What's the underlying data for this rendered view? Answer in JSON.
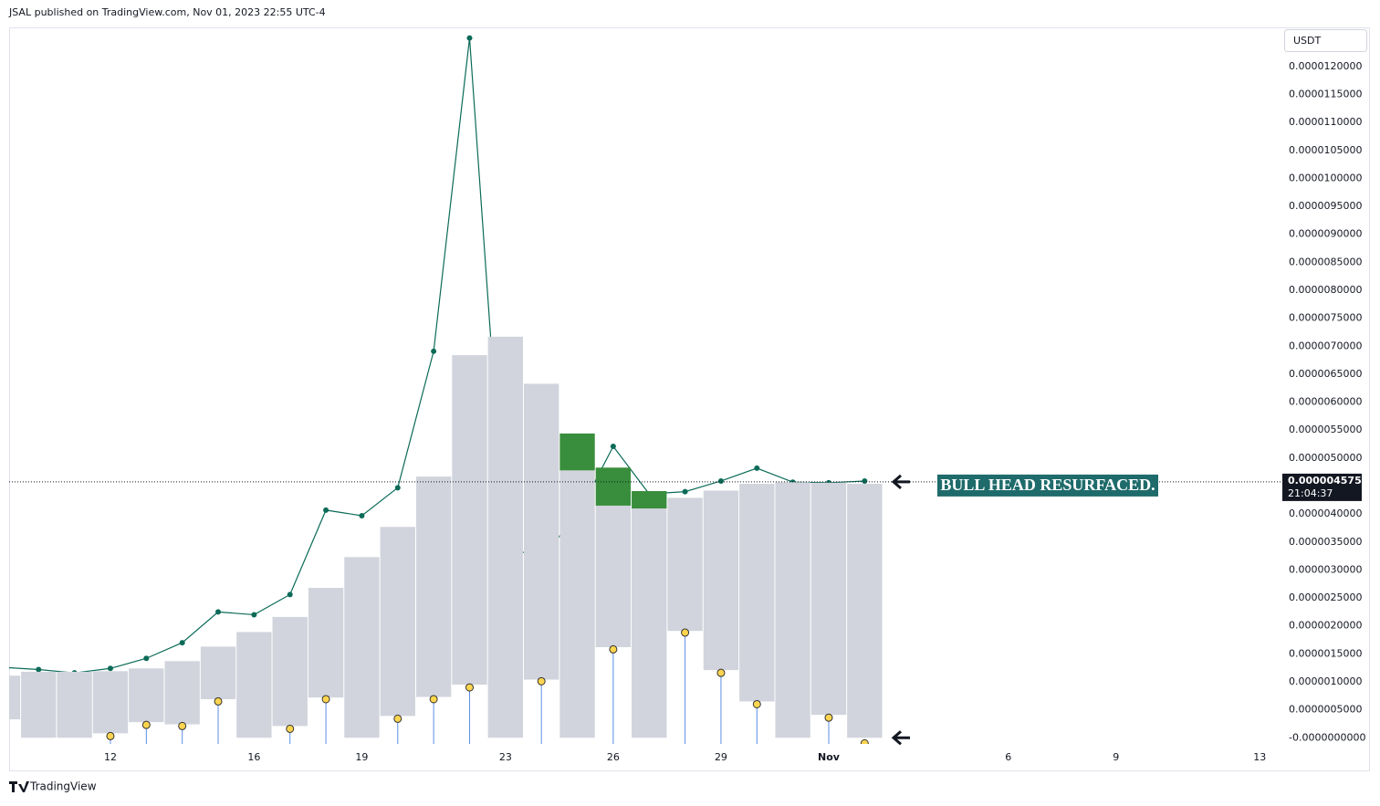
{
  "header": {
    "text": "JSAL published on TradingView.com, Nov 01, 2023 22:55 UTC-4"
  },
  "footer": {
    "brand": "TradingView"
  },
  "chart_data": {
    "type": "indicator",
    "currency": "USDT",
    "x": [
      0,
      1,
      2,
      3,
      4,
      5,
      6,
      7,
      8,
      9,
      10,
      11,
      12,
      13,
      14,
      15,
      16,
      17,
      18,
      19,
      20,
      21,
      22,
      23,
      24
    ],
    "xlim": [
      0.18,
      35.63
    ],
    "xticks": [
      {
        "value": 3,
        "label": "12"
      },
      {
        "value": 7,
        "label": "16"
      },
      {
        "value": 10,
        "label": "19"
      },
      {
        "value": 14,
        "label": "23"
      },
      {
        "value": 17,
        "label": "26"
      },
      {
        "value": 20,
        "label": "29"
      },
      {
        "value": 23,
        "label": "Nov"
      },
      {
        "value": 28,
        "label": "6"
      },
      {
        "value": 31,
        "label": "9"
      },
      {
        "value": 35,
        "label": "13"
      }
    ],
    "ylim": [
      -1.1e-07,
      1.27e-05
    ],
    "yticks": [
      {
        "value": 0,
        "label": "-0.0000000000"
      },
      {
        "value": 5e-07,
        "label": "0.0000005000"
      },
      {
        "value": 1e-06,
        "label": "0.0000010000"
      },
      {
        "value": 1.5e-06,
        "label": "0.0000015000"
      },
      {
        "value": 2e-06,
        "label": "0.0000020000"
      },
      {
        "value": 2.5e-06,
        "label": "0.0000025000"
      },
      {
        "value": 3e-06,
        "label": "0.0000030000"
      },
      {
        "value": 3.5e-06,
        "label": "0.0000035000"
      },
      {
        "value": 4e-06,
        "label": "0.0000040000"
      },
      {
        "value": 5e-06,
        "label": "0.0000050000"
      },
      {
        "value": 5.5e-06,
        "label": "0.0000055000"
      },
      {
        "value": 6e-06,
        "label": "0.0000060000"
      },
      {
        "value": 6.5e-06,
        "label": "0.0000065000"
      },
      {
        "value": 7e-06,
        "label": "0.0000070000"
      },
      {
        "value": 7.5e-06,
        "label": "0.0000075000"
      },
      {
        "value": 8e-06,
        "label": "0.0000080000"
      },
      {
        "value": 8.5e-06,
        "label": "0.0000085000"
      },
      {
        "value": 9e-06,
        "label": "0.0000090000"
      },
      {
        "value": 9.5e-06,
        "label": "0.0000095000"
      },
      {
        "value": 1e-05,
        "label": "0.0000100000"
      },
      {
        "value": 1.05e-05,
        "label": "0.0000105000"
      },
      {
        "value": 1.1e-05,
        "label": "0.0000110000"
      },
      {
        "value": 1.15e-05,
        "label": "0.0000115000"
      },
      {
        "value": 1.2e-05,
        "label": "0.0000120000"
      }
    ],
    "boxes": {
      "color": "#d1d4dc",
      "tops": [
        1.11e-06,
        1.18e-06,
        1.18e-06,
        1.19e-06,
        1.24e-06,
        1.37e-06,
        1.63e-06,
        1.89e-06,
        2.16e-06,
        2.68e-06,
        3.23e-06,
        3.77e-06,
        4.67e-06,
        6.84e-06,
        7.17e-06,
        6.33e-06,
        4.78e-06,
        4.15e-06,
        4.1e-06,
        4.29e-06,
        4.42e-06,
        4.54e-06,
        4.57e-06,
        4.56e-06,
        4.54e-06
      ],
      "bottoms": [
        3.3e-07,
        0,
        0,
        8e-08,
        2.8e-07,
        2.4e-07,
        6.9e-07,
        0,
        2.1e-07,
        7.2e-07,
        0,
        3.9e-07,
        7.3e-07,
        9.5e-07,
        0,
        1.04e-06,
        0,
        1.62e-06,
        0,
        1.91e-06,
        1.21e-06,
        6.5e-07,
        0,
        4.1e-07,
        0
      ]
    },
    "green_boxes": {
      "color": "#388e3c",
      "tops": [
        null,
        null,
        null,
        null,
        null,
        null,
        null,
        null,
        null,
        null,
        null,
        null,
        null,
        null,
        null,
        null,
        5.44e-06,
        4.83e-06,
        4.41e-06,
        null,
        null,
        null,
        null,
        null,
        null
      ],
      "bottoms": [
        null,
        null,
        null,
        null,
        null,
        null,
        null,
        null,
        null,
        null,
        null,
        null,
        null,
        null,
        null,
        null,
        4.78e-06,
        4.15e-06,
        4.1e-06,
        null,
        null,
        null,
        null,
        null,
        null
      ]
    },
    "line": {
      "color": "#0b6b58",
      "values": [
        1.26e-06,
        1.22e-06,
        1.16e-06,
        1.24e-06,
        1.42e-06,
        1.7e-06,
        2.25e-06,
        2.2e-06,
        2.56e-06,
        4.07e-06,
        3.97e-06,
        4.47e-06,
        6.91e-06,
        1.251e-05,
        3.4e-06,
        3.23e-06,
        3.97e-06,
        5.21e-06,
        4.36e-06,
        4.4e-06,
        4.59e-06,
        4.82e-06,
        4.57e-06,
        4.56e-06,
        4.59e-06
      ]
    },
    "markers": {
      "color": "#ffd54f",
      "stem_color": "#5b8ee6",
      "values": [
        null,
        null,
        null,
        3e-08,
        2.3e-07,
        2.1e-07,
        6.5e-07,
        null,
        1.6e-07,
        6.9e-07,
        null,
        3.4e-07,
        6.9e-07,
        9e-07,
        null,
        1.01e-06,
        null,
        1.58e-06,
        null,
        1.88e-06,
        1.16e-06,
        6e-07,
        null,
        3.6e-07,
        -1e-07
      ]
    },
    "last_price": {
      "value": 4.575e-06,
      "label": "0.0000045750",
      "countdown": "21:04:37"
    },
    "annotation": {
      "text": "BULL HEAD RESURFACED.",
      "color": "#1f6b6b",
      "arrow_levels": [
        4.575e-06,
        0
      ]
    }
  }
}
